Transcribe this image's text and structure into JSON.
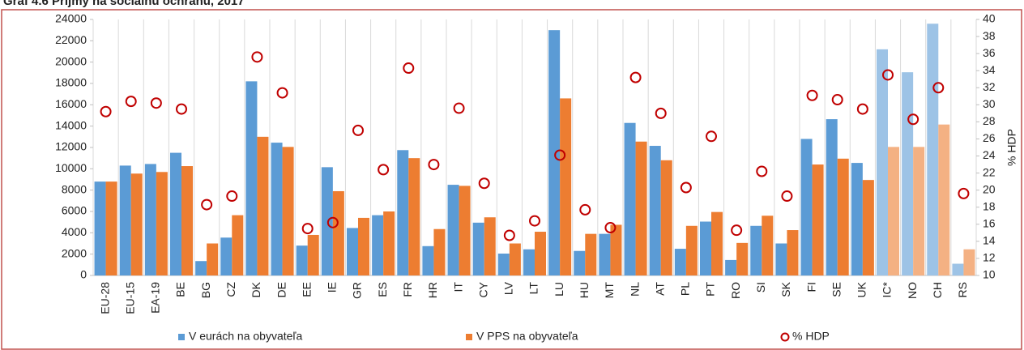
{
  "chart_data": {
    "type": "bar",
    "title": "Graf 4.6 Príjmy na sociálnu ochranu, 2017",
    "y2label": "% HDP",
    "categories": [
      "EU-28",
      "EU-15",
      "EA-19",
      "BE",
      "BG",
      "CZ",
      "DK",
      "DE",
      "EE",
      "IE",
      "GR",
      "ES",
      "FR",
      "HR",
      "IT",
      "CY",
      "LV",
      "LT",
      "LU",
      "HU",
      "MT",
      "NL",
      "AT",
      "PL",
      "PT",
      "RO",
      "SI",
      "SK",
      "FI",
      "SE",
      "UK",
      "IC*",
      "NO",
      "CH",
      "RS"
    ],
    "series": [
      {
        "name": "V eurách na obyvateľa",
        "type": "bar",
        "colors": [
          "#5b9bd5",
          "#5b9bd5",
          "#5b9bd5",
          "#5b9bd5",
          "#5b9bd5",
          "#5b9bd5",
          "#5b9bd5",
          "#5b9bd5",
          "#5b9bd5",
          "#5b9bd5",
          "#5b9bd5",
          "#5b9bd5",
          "#5b9bd5",
          "#5b9bd5",
          "#5b9bd5",
          "#5b9bd5",
          "#5b9bd5",
          "#5b9bd5",
          "#5b9bd5",
          "#5b9bd5",
          "#5b9bd5",
          "#5b9bd5",
          "#5b9bd5",
          "#5b9bd5",
          "#5b9bd5",
          "#5b9bd5",
          "#5b9bd5",
          "#5b9bd5",
          "#5b9bd5",
          "#5b9bd5",
          "#5b9bd5",
          "#9dc3e6",
          "#9dc3e6",
          "#9dc3e6",
          "#9dc3e6"
        ],
        "color": "#5b9bd5",
        "values": [
          8800,
          10300,
          10450,
          11500,
          1350,
          3550,
          18200,
          12450,
          2800,
          10150,
          4450,
          5650,
          11750,
          2750,
          8500,
          4950,
          2050,
          2450,
          23000,
          2300,
          3900,
          14300,
          12150,
          2500,
          5050,
          1450,
          4650,
          3000,
          12800,
          14650,
          10550,
          21200,
          19050,
          23600,
          1100
        ]
      },
      {
        "name": "V PPS  na obyvateľa",
        "type": "bar",
        "colors": [
          "#ed7d31",
          "#ed7d31",
          "#ed7d31",
          "#ed7d31",
          "#ed7d31",
          "#ed7d31",
          "#ed7d31",
          "#ed7d31",
          "#ed7d31",
          "#ed7d31",
          "#ed7d31",
          "#ed7d31",
          "#ed7d31",
          "#ed7d31",
          "#ed7d31",
          "#ed7d31",
          "#ed7d31",
          "#ed7d31",
          "#ed7d31",
          "#ed7d31",
          "#ed7d31",
          "#ed7d31",
          "#ed7d31",
          "#ed7d31",
          "#ed7d31",
          "#ed7d31",
          "#ed7d31",
          "#ed7d31",
          "#ed7d31",
          "#ed7d31",
          "#ed7d31",
          "#f4b183",
          "#f4b183",
          "#f4b183",
          "#f4b183"
        ],
        "color": "#ed7d31",
        "values": [
          8800,
          9550,
          9700,
          10250,
          3000,
          5650,
          13000,
          12050,
          3800,
          7900,
          5400,
          6000,
          11000,
          4350,
          8400,
          5450,
          3000,
          4100,
          16600,
          3900,
          4750,
          12550,
          10800,
          4650,
          5950,
          3050,
          5600,
          4250,
          10400,
          10950,
          8950,
          12050,
          12050,
          14150,
          2450
        ]
      },
      {
        "name": "% HDP",
        "type": "scatter",
        "axis": "y2",
        "color": "#c00000",
        "values": [
          29.2,
          30.4,
          30.2,
          29.5,
          18.3,
          19.3,
          35.6,
          31.4,
          15.5,
          16.2,
          27.0,
          22.4,
          34.3,
          23.0,
          29.6,
          20.8,
          14.7,
          16.4,
          24.1,
          17.7,
          15.6,
          33.2,
          29.0,
          20.3,
          26.3,
          15.3,
          22.2,
          19.3,
          31.1,
          30.6,
          29.5,
          33.5,
          28.3,
          32.0,
          19.6
        ]
      }
    ],
    "ylim": [
      0,
      24000
    ],
    "yticks": [
      0,
      2000,
      4000,
      6000,
      8000,
      10000,
      12000,
      14000,
      16000,
      18000,
      20000,
      22000,
      24000
    ],
    "y2lim": [
      10,
      40
    ],
    "y2ticks": [
      10,
      12,
      14,
      16,
      18,
      20,
      22,
      24,
      26,
      28,
      30,
      32,
      34,
      36,
      38,
      40
    ],
    "grid": true,
    "legend": "bottom"
  }
}
